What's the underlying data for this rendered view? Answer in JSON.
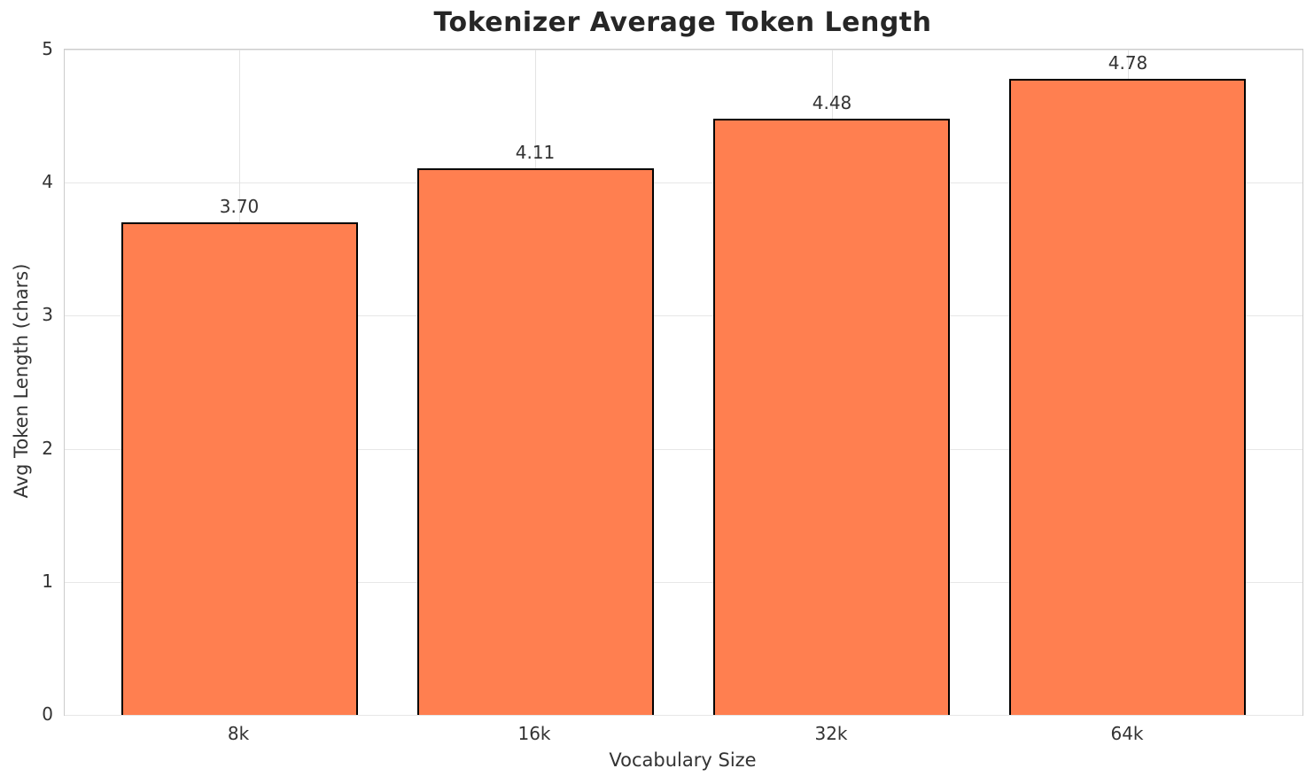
{
  "chart_data": {
    "type": "bar",
    "title": "Tokenizer Average Token Length",
    "categories": [
      "8k",
      "16k",
      "32k",
      "64k"
    ],
    "values": [
      3.7,
      4.11,
      4.48,
      4.78
    ],
    "value_labels": [
      "3.70",
      "4.11",
      "4.48",
      "4.78"
    ],
    "xlabel": "Vocabulary Size",
    "ylabel": "Avg Token Length (chars)",
    "ylim": [
      0,
      5
    ],
    "yticks": [
      0,
      1,
      2,
      3,
      4,
      5
    ],
    "grid": true,
    "legend": false,
    "bar_color": "#ff7f50",
    "bar_edge_color": "#000000"
  }
}
